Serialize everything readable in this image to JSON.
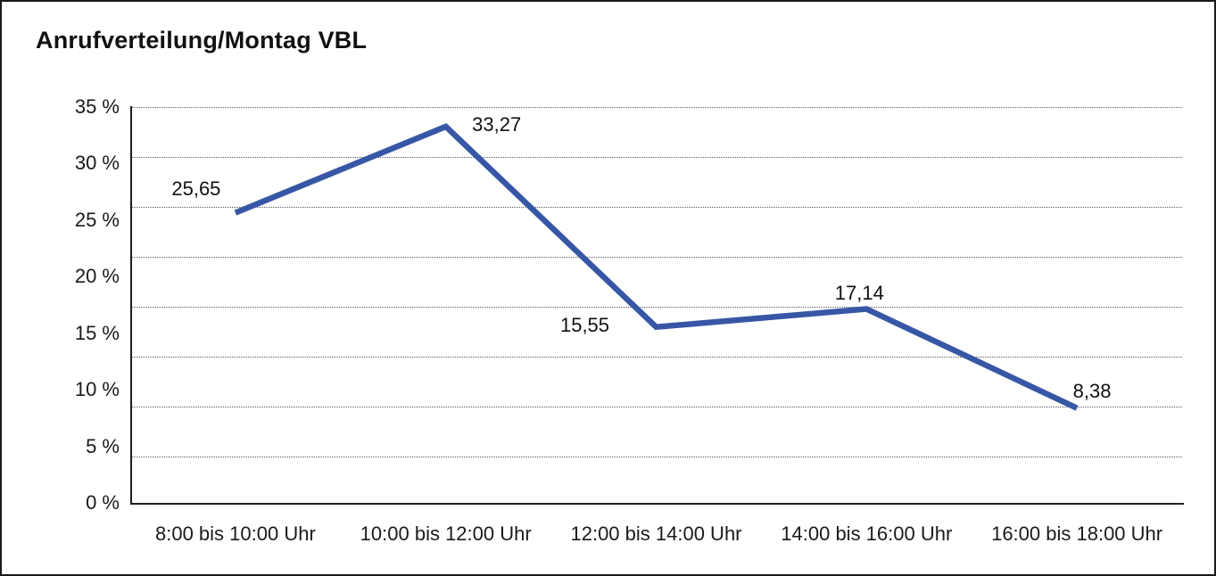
{
  "title": "Anrufverteilung/Montag VBL",
  "chart_data": {
    "type": "line",
    "title": "Anrufverteilung/Montag VBL",
    "categories": [
      "8:00 bis 10:00 Uhr",
      "10:00 bis 12:00 Uhr",
      "12:00 bis 14:00 Uhr",
      "14:00 bis 16:00 Uhr",
      "16:00 bis 18:00 Uhr"
    ],
    "values": [
      25.65,
      33.27,
      15.55,
      17.14,
      8.38
    ],
    "value_labels": [
      "25,65",
      "33,27",
      "15,55",
      "17,14",
      "8,38"
    ],
    "ylabel": "",
    "xlabel": "",
    "ylim": [
      0,
      35
    ],
    "ytick_step": 5,
    "ytick_values": [
      35,
      30,
      25,
      20,
      15,
      10,
      5,
      0
    ],
    "ytick_labels": [
      "35 %",
      "30 %",
      "25 %",
      "20 %",
      "15 %",
      "10 %",
      "5 %",
      "0 %"
    ],
    "grid": "horizontal-dotted",
    "legend": "none",
    "line_color": "#3757A6"
  }
}
